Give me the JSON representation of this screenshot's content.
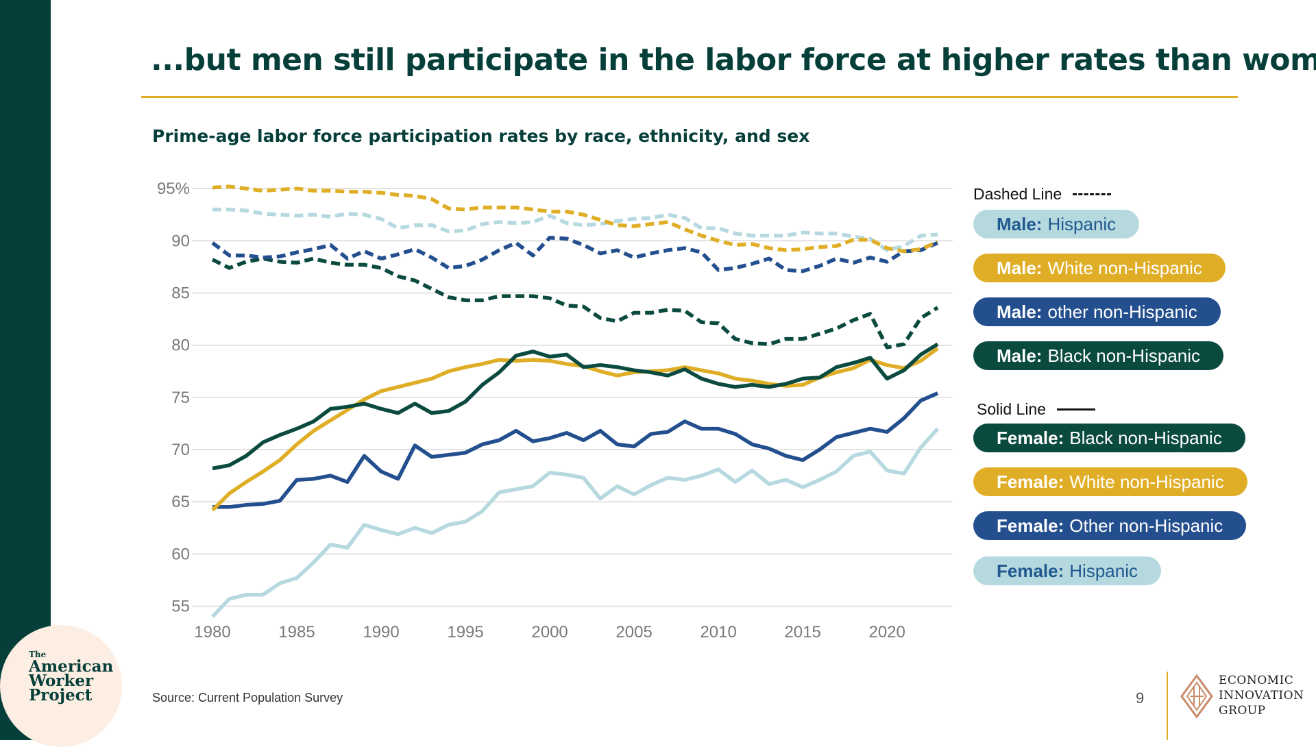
{
  "title": "...but men still participate in the labor force at higher rates than women.",
  "source": "Source: Current Population Survey",
  "page_number": "9",
  "branding": {
    "awp_small": "The",
    "awp_line1": "American",
    "awp_line2": "Worker",
    "awp_line3": "Project",
    "eig_line1": "ECONOMIC",
    "eig_line2": "INNOVATION",
    "eig_line3": "GROUP"
  },
  "legend": {
    "dashed_heading": "Dashed Line",
    "solid_heading": "Solid Line",
    "entries": [
      {
        "bold": "Male:",
        "rest": "Hispanic",
        "bg": "#b6d9e0",
        "fg": "#20598f"
      },
      {
        "bold": "Male:",
        "rest": "White non-Hispanic",
        "bg": "#e0ae26",
        "fg": "#ffffff"
      },
      {
        "bold": "Male:",
        "rest": "other non-Hispanic",
        "bg": "#244f8f",
        "fg": "#ffffff"
      },
      {
        "bold": "Male:",
        "rest": "Black non-Hispanic",
        "bg": "#0b4a3f",
        "fg": "#ffffff"
      },
      {
        "bold": "Female:",
        "rest": "Black non-Hispanic",
        "bg": "#0b4a3f",
        "fg": "#ffffff"
      },
      {
        "bold": "Female:",
        "rest": "White non-Hispanic",
        "bg": "#e0ae26",
        "fg": "#ffffff"
      },
      {
        "bold": "Female:",
        "rest": "Other non-Hispanic",
        "bg": "#244f8f",
        "fg": "#ffffff"
      },
      {
        "bold": "Female:",
        "rest": "Hispanic",
        "bg": "#b6d9e0",
        "fg": "#20598f"
      }
    ]
  },
  "chart_data": {
    "type": "line",
    "title": "Prime-age labor force participation rates by race, ethnicity, and sex",
    "xlabel": "",
    "ylabel": "",
    "xlim": [
      1980,
      2023
    ],
    "ylim": [
      53,
      96
    ],
    "x_ticks": [
      1980,
      1985,
      1990,
      1995,
      2000,
      2005,
      2010,
      2015,
      2020
    ],
    "x_tick_labels": [
      "1980",
      "1985",
      "1990",
      "1995",
      "2000",
      "2005",
      "2010",
      "2015",
      "2020"
    ],
    "y_ticks": [
      55,
      60,
      65,
      70,
      75,
      80,
      85,
      90,
      95
    ],
    "y_tick_labels": [
      "55",
      "60",
      "65",
      "70",
      "75",
      "80",
      "85",
      "90",
      "95%"
    ],
    "grid": true,
    "legend_position": "right",
    "x": [
      1980,
      1981,
      1982,
      1983,
      1984,
      1985,
      1986,
      1987,
      1988,
      1989,
      1990,
      1991,
      1992,
      1993,
      1994,
      1995,
      1996,
      1997,
      1998,
      1999,
      2000,
      2001,
      2002,
      2003,
      2004,
      2005,
      2006,
      2007,
      2008,
      2009,
      2010,
      2011,
      2012,
      2013,
      2014,
      2015,
      2016,
      2017,
      2018,
      2019,
      2020,
      2021,
      2022,
      2023
    ],
    "series": [
      {
        "name": "Male: Hispanic",
        "style": "dashed",
        "color": "#b6d9e0",
        "values": [
          93.0,
          93.0,
          92.9,
          92.6,
          92.5,
          92.4,
          92.5,
          92.3,
          92.6,
          92.5,
          92.1,
          91.2,
          91.5,
          91.5,
          90.9,
          91.0,
          91.6,
          91.8,
          91.7,
          91.8,
          92.4,
          91.7,
          91.5,
          91.6,
          91.9,
          92.1,
          92.2,
          92.5,
          92.2,
          91.2,
          91.2,
          90.7,
          90.5,
          90.5,
          90.5,
          90.8,
          90.7,
          90.7,
          90.4,
          90.2,
          89.1,
          89.5,
          90.5,
          90.6
        ]
      },
      {
        "name": "Male: White non-Hispanic",
        "style": "dashed",
        "color": "#e0ae26",
        "values": [
          95.1,
          95.2,
          95.0,
          94.8,
          94.9,
          95.0,
          94.8,
          94.8,
          94.7,
          94.7,
          94.6,
          94.4,
          94.3,
          94.0,
          93.1,
          93.0,
          93.2,
          93.2,
          93.2,
          93.0,
          92.8,
          92.8,
          92.5,
          92.0,
          91.5,
          91.4,
          91.6,
          91.8,
          91.1,
          90.5,
          90.0,
          89.6,
          89.7,
          89.3,
          89.1,
          89.2,
          89.4,
          89.5,
          90.1,
          90.1,
          89.3,
          89.0,
          89.2,
          89.9
        ]
      },
      {
        "name": "Male: other non-Hispanic",
        "style": "dashed",
        "color": "#244f8f",
        "values": [
          89.8,
          88.6,
          88.6,
          88.4,
          88.5,
          88.9,
          89.2,
          89.6,
          88.3,
          89.0,
          88.3,
          88.7,
          89.2,
          88.4,
          87.4,
          87.6,
          88.2,
          89.1,
          89.8,
          88.6,
          90.3,
          90.2,
          89.6,
          88.8,
          89.1,
          88.4,
          88.8,
          89.1,
          89.3,
          88.9,
          87.2,
          87.4,
          87.8,
          88.3,
          87.2,
          87.1,
          87.6,
          88.3,
          87.9,
          88.4,
          88.0,
          89.0,
          89.1,
          89.8
        ]
      },
      {
        "name": "Male: Black non-Hispanic",
        "style": "dashed",
        "color": "#0b4a3f",
        "values": [
          88.2,
          87.4,
          88.0,
          88.3,
          88.0,
          87.9,
          88.3,
          87.9,
          87.7,
          87.7,
          87.4,
          86.6,
          86.2,
          85.4,
          84.6,
          84.3,
          84.3,
          84.7,
          84.7,
          84.7,
          84.5,
          83.8,
          83.7,
          82.6,
          82.3,
          83.1,
          83.1,
          83.4,
          83.3,
          82.2,
          82.1,
          80.6,
          80.2,
          80.1,
          80.6,
          80.6,
          81.1,
          81.6,
          82.4,
          83.0,
          79.8,
          80.1,
          82.6,
          83.6
        ]
      },
      {
        "name": "Female: Black non-Hispanic",
        "style": "solid",
        "color": "#0b4a3f",
        "values": [
          68.2,
          68.5,
          69.4,
          70.7,
          71.4,
          72.0,
          72.7,
          73.9,
          74.1,
          74.4,
          73.9,
          73.5,
          74.4,
          73.5,
          73.7,
          74.6,
          76.2,
          77.4,
          79.0,
          79.4,
          78.9,
          79.1,
          77.9,
          78.1,
          77.9,
          77.6,
          77.4,
          77.1,
          77.7,
          76.8,
          76.3,
          76.0,
          76.2,
          76.0,
          76.3,
          76.8,
          76.9,
          77.9,
          78.3,
          78.8,
          76.8,
          77.6,
          79.1,
          80.1
        ]
      },
      {
        "name": "Female: White non-Hispanic",
        "style": "solid",
        "color": "#e0ae26",
        "values": [
          64.2,
          65.8,
          66.9,
          67.9,
          69.0,
          70.5,
          71.8,
          72.8,
          73.8,
          74.8,
          75.6,
          76.0,
          76.4,
          76.8,
          77.5,
          77.9,
          78.2,
          78.6,
          78.5,
          78.6,
          78.5,
          78.2,
          78.0,
          77.5,
          77.1,
          77.4,
          77.5,
          77.6,
          77.9,
          77.6,
          77.3,
          76.8,
          76.6,
          76.3,
          76.1,
          76.2,
          76.9,
          77.4,
          77.8,
          78.6,
          78.1,
          77.8,
          78.5,
          79.7
        ]
      },
      {
        "name": "Female: Other non-Hispanic",
        "style": "solid",
        "color": "#244f8f",
        "values": [
          64.5,
          64.5,
          64.7,
          64.8,
          65.1,
          67.1,
          67.2,
          67.5,
          66.9,
          69.4,
          67.9,
          67.2,
          70.4,
          69.3,
          69.5,
          69.7,
          70.5,
          70.9,
          71.8,
          70.8,
          71.1,
          71.6,
          70.9,
          71.8,
          70.5,
          70.3,
          71.5,
          71.7,
          72.7,
          72.0,
          72.0,
          71.5,
          70.5,
          70.1,
          69.4,
          69.0,
          70.0,
          71.2,
          71.6,
          72.0,
          71.7,
          73.0,
          74.7,
          75.4
        ]
      },
      {
        "name": "Female: Hispanic",
        "style": "solid",
        "color": "#b6d9e0",
        "values": [
          54.0,
          55.7,
          56.1,
          56.1,
          57.2,
          57.7,
          59.2,
          60.9,
          60.6,
          62.8,
          62.3,
          61.9,
          62.5,
          62.0,
          62.8,
          63.1,
          64.1,
          65.9,
          66.2,
          66.5,
          67.8,
          67.6,
          67.3,
          65.3,
          66.5,
          65.7,
          66.6,
          67.3,
          67.1,
          67.5,
          68.1,
          66.9,
          68.0,
          66.7,
          67.1,
          66.4,
          67.1,
          67.9,
          69.4,
          69.8,
          68.0,
          67.7,
          70.2,
          72.0
        ]
      }
    ]
  }
}
